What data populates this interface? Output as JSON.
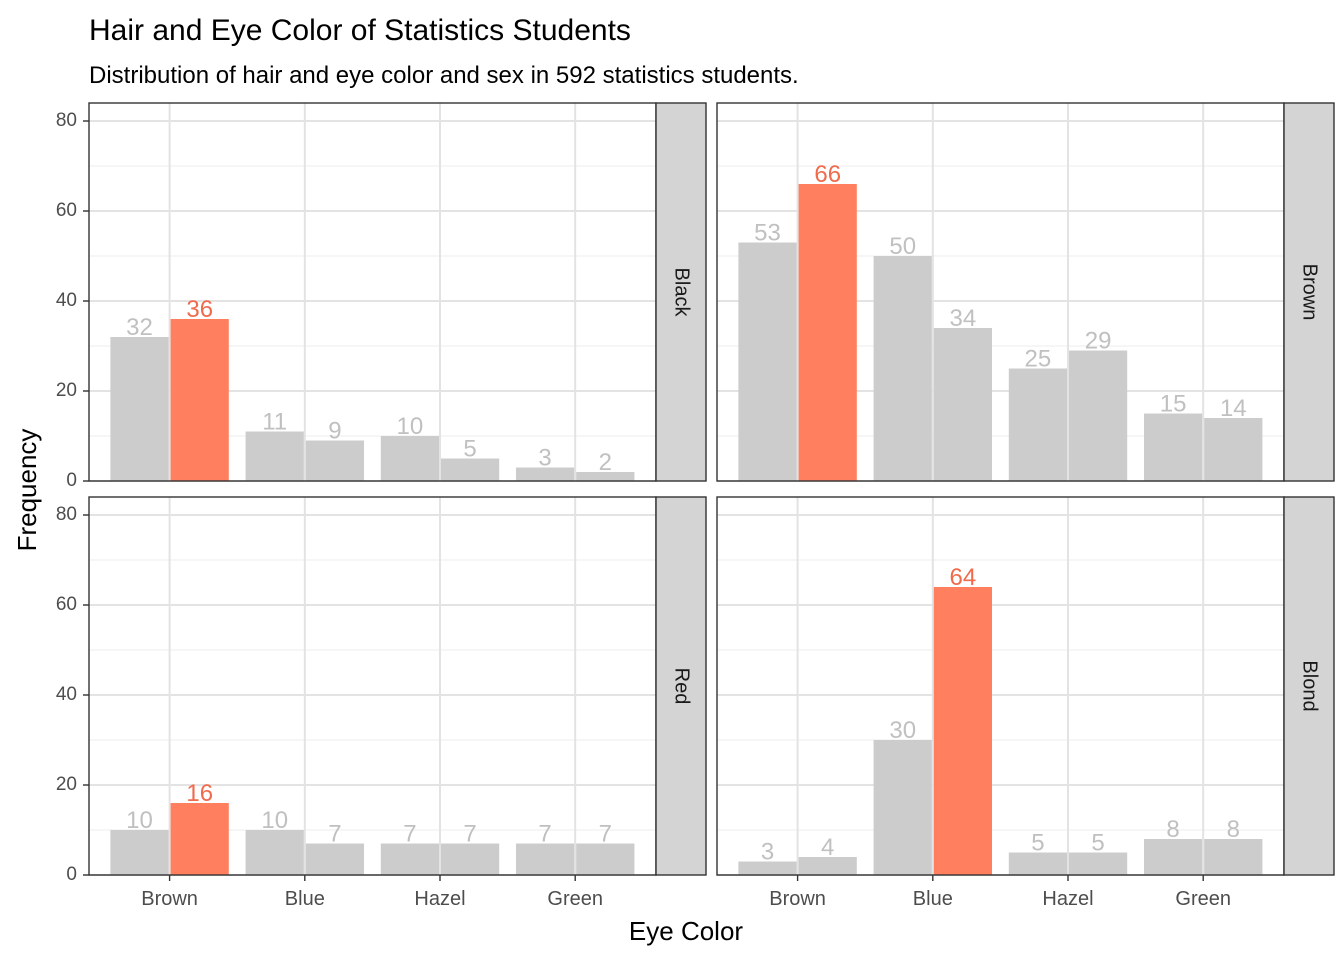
{
  "chart_data": {
    "type": "bar",
    "title": "Hair and Eye Color of Statistics Students",
    "subtitle": "Distribution of hair and eye color and sex in 592 statistics students.",
    "xlabel": "Eye Color",
    "ylabel": "Frequency",
    "ylim": [
      0,
      84
    ],
    "yticks": [
      0,
      20,
      40,
      60,
      80
    ],
    "categories": [
      "Brown",
      "Blue",
      "Hazel",
      "Green"
    ],
    "grid": true,
    "colors": {
      "default": "#cccccc",
      "highlight": "#ff7f5f",
      "highlight_label": "#f06a4c",
      "label": "#c0c0c0",
      "strip": "#d4d4d4"
    },
    "panels": [
      {
        "facet": "Black",
        "pairs": [
          [
            32,
            36
          ],
          [
            11,
            9
          ],
          [
            10,
            5
          ],
          [
            3,
            2
          ]
        ],
        "highlight": [
          0,
          1
        ]
      },
      {
        "facet": "Brown",
        "pairs": [
          [
            53,
            66
          ],
          [
            50,
            34
          ],
          [
            25,
            29
          ],
          [
            15,
            14
          ]
        ],
        "highlight": [
          0,
          1
        ]
      },
      {
        "facet": "Red",
        "pairs": [
          [
            10,
            16
          ],
          [
            10,
            7
          ],
          [
            7,
            7
          ],
          [
            7,
            7
          ]
        ],
        "highlight": [
          0,
          1
        ]
      },
      {
        "facet": "Blond",
        "pairs": [
          [
            3,
            4
          ],
          [
            30,
            64
          ],
          [
            5,
            5
          ],
          [
            8,
            8
          ]
        ],
        "highlight": [
          1,
          1
        ]
      }
    ]
  }
}
